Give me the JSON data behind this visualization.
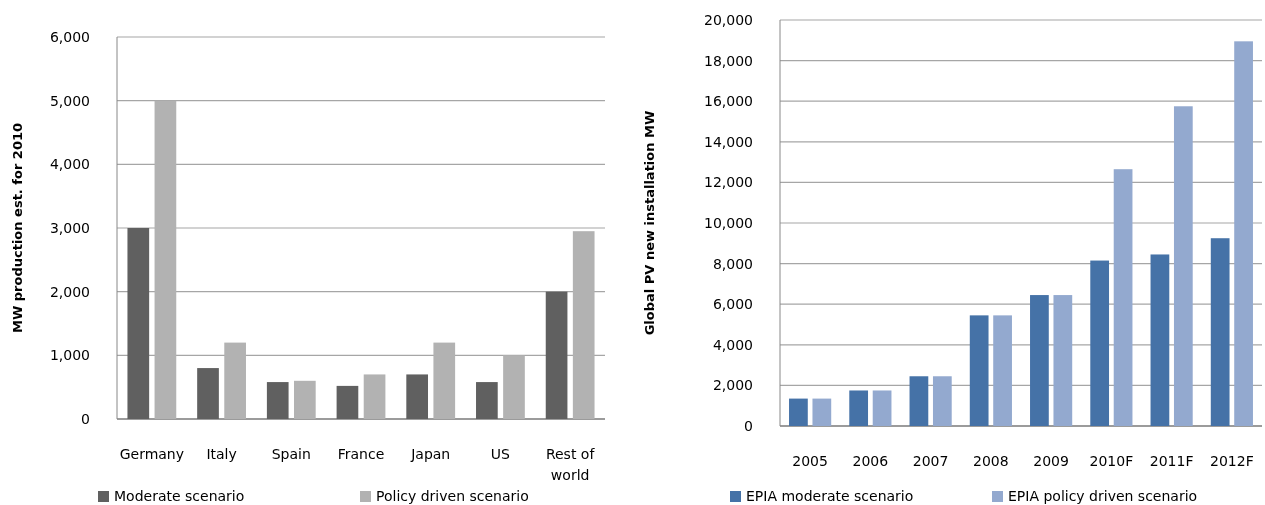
{
  "chart_data": [
    {
      "type": "bar",
      "ylabel": "MW production est. for 2010",
      "categories": [
        "Germany",
        "Italy",
        "Spain",
        "France",
        "Japan",
        "US",
        "Rest of world"
      ],
      "series": [
        {
          "name": "Moderate scenario",
          "color": "#606060",
          "values": [
            3000,
            800,
            580,
            520,
            700,
            580,
            2000
          ]
        },
        {
          "name": "Policy driven scenario",
          "color": "#b2b2b2",
          "values": [
            5000,
            1200,
            600,
            700,
            1200,
            1000,
            2950
          ]
        }
      ],
      "ylim": [
        0,
        6000
      ],
      "yticks": [
        {
          "value": 0,
          "label": "0"
        },
        {
          "value": 1000,
          "label": "1,000"
        },
        {
          "value": 2000,
          "label": "2,000"
        },
        {
          "value": 3000,
          "label": "3,000"
        },
        {
          "value": 4000,
          "label": "4,000"
        },
        {
          "value": 5000,
          "label": "5,000"
        },
        {
          "value": 6000,
          "label": "6,000"
        }
      ],
      "grid": "y",
      "legend": "bottom"
    },
    {
      "type": "bar",
      "ylabel": "Global PV new installation  MW",
      "categories": [
        "2005",
        "2006",
        "2007",
        "2008",
        "2009",
        "2010F",
        "2011F",
        "2012F"
      ],
      "series": [
        {
          "name": "EPIA moderate scenario",
          "color": "#4572a7",
          "values": [
            1350,
            1750,
            2450,
            5450,
            6450,
            8150,
            8450,
            9250
          ]
        },
        {
          "name": "EPIA policy driven scenario",
          "color": "#93a9cf",
          "values": [
            1350,
            1750,
            2450,
            5450,
            6450,
            12650,
            15750,
            18950
          ]
        }
      ],
      "ylim": [
        0,
        20000
      ],
      "yticks": [
        {
          "value": 0,
          "label": "0"
        },
        {
          "value": 2000,
          "label": "2,000"
        },
        {
          "value": 4000,
          "label": "4,000"
        },
        {
          "value": 6000,
          "label": "6,000"
        },
        {
          "value": 8000,
          "label": "8,000"
        },
        {
          "value": 10000,
          "label": "10,000"
        },
        {
          "value": 12000,
          "label": "12,000"
        },
        {
          "value": 14000,
          "label": "14,000"
        },
        {
          "value": 16000,
          "label": "16,000"
        },
        {
          "value": 18000,
          "label": "18,000"
        },
        {
          "value": 20000,
          "label": "20,000"
        }
      ],
      "grid": "y",
      "legend": "bottom"
    }
  ]
}
